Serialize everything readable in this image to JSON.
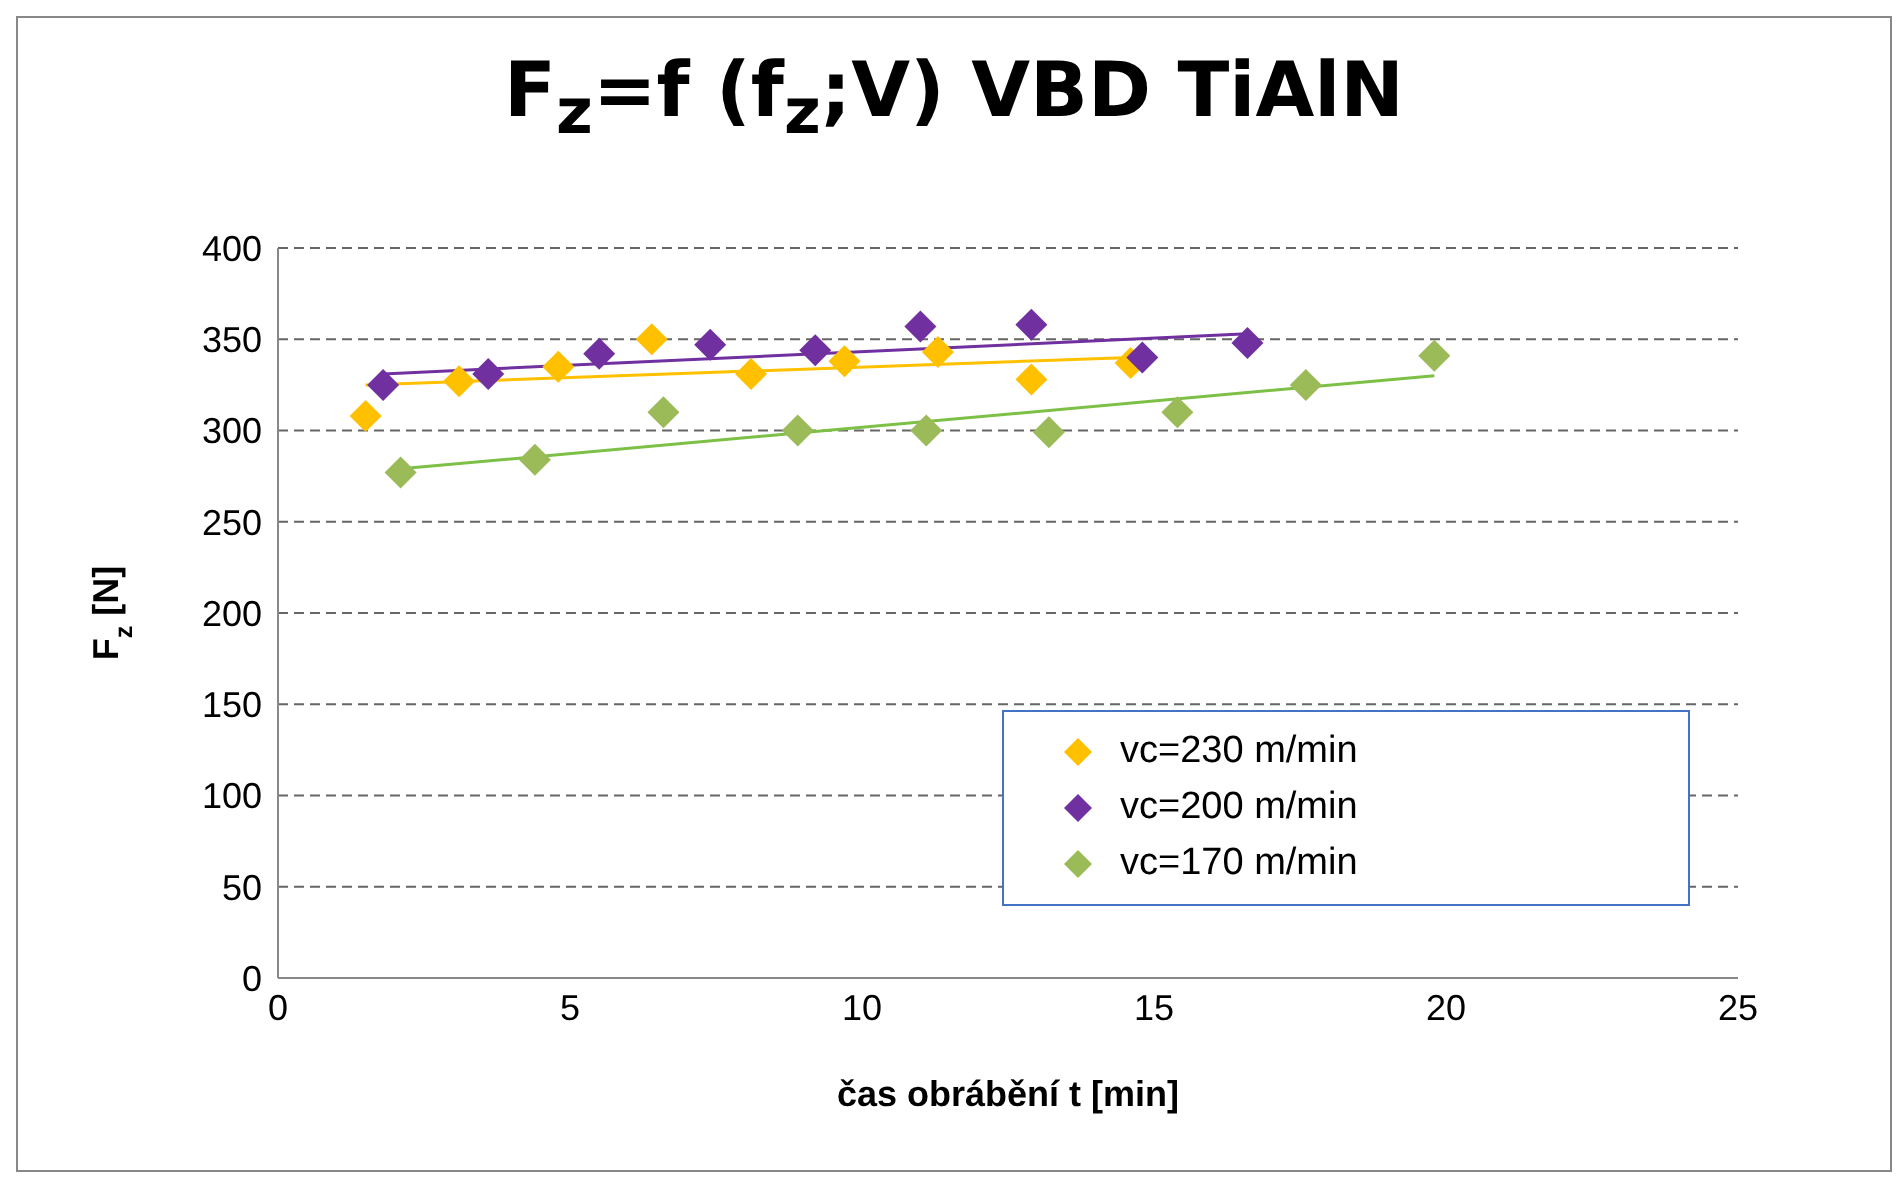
{
  "chart_data": {
    "type": "scatter",
    "title": "F$_{z}$=f (f$_{z}$;V) VBD TiAlN",
    "xlabel": "čas  obrábění t [min]",
    "ylabel": "F$_{z}$ [N]",
    "xlim": [
      0,
      25
    ],
    "xticks": [
      0,
      5,
      10,
      15,
      20,
      25
    ],
    "ylim": [
      0,
      400
    ],
    "yticks": [
      0,
      50,
      100,
      150,
      200,
      250,
      300,
      350,
      400
    ],
    "grid": "y",
    "legend": "bottom right",
    "line_style": "solid",
    "series": [
      {
        "name": "vc=230 m/min",
        "marker": "diamond",
        "color": "#ffc000",
        "x": [
          1.5,
          3.1,
          4.8,
          6.4,
          8.1,
          9.7,
          11.3,
          12.9,
          14.6
        ],
        "values": [
          308,
          327,
          335,
          350,
          331,
          338,
          343,
          328,
          337
        ]
      },
      {
        "name": "vc=200 m/min",
        "marker": "diamond",
        "color": "#7030a0",
        "x": [
          1.8,
          3.6,
          5.5,
          7.4,
          9.2,
          11.0,
          12.9,
          14.8,
          16.6
        ],
        "values": [
          325,
          331,
          342,
          347,
          344,
          357,
          358,
          340,
          348
        ]
      },
      {
        "name": "vc=170 m/min",
        "marker": "diamond",
        "color": "#9bbb59",
        "x": [
          2.1,
          4.4,
          6.6,
          8.9,
          11.1,
          13.2,
          15.4,
          17.6,
          19.8
        ],
        "values": [
          277,
          284,
          310,
          300,
          300,
          299,
          310,
          325,
          341
        ]
      },
      {
        "type": "line",
        "marker": "none",
        "color": "#ffc000",
        "x": [
          1.5,
          14.6
        ],
        "values": [
          325,
          340
        ]
      },
      {
        "type": "line",
        "marker": "none",
        "color": "#7030a0",
        "x": [
          1.8,
          16.6
        ],
        "values": [
          331,
          353
        ]
      },
      {
        "type": "line",
        "marker": "none",
        "color": "#7cc046",
        "x": [
          2.1,
          19.8
        ],
        "values": [
          279,
          330
        ]
      }
    ]
  }
}
